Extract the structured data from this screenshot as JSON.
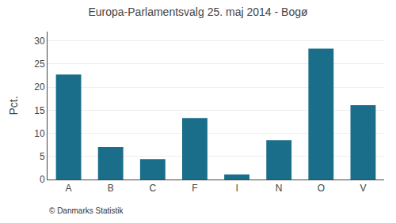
{
  "chart_data": {
    "type": "bar",
    "title": "Europa-Parlamentsvalg 25. maj 2014 - Bogø",
    "categories": [
      "A",
      "B",
      "C",
      "F",
      "I",
      "N",
      "O",
      "V"
    ],
    "values": [
      22.7,
      7.0,
      4.4,
      13.3,
      1.1,
      8.5,
      28.3,
      16.1
    ],
    "color": "#1a6e8a",
    "ylabel": "Pct.",
    "ylim": [
      0,
      32
    ],
    "yticks": [
      0,
      5,
      10,
      15,
      20,
      25,
      30
    ],
    "grid": true,
    "annotations": [
      "© Danmarks Statistik"
    ]
  }
}
